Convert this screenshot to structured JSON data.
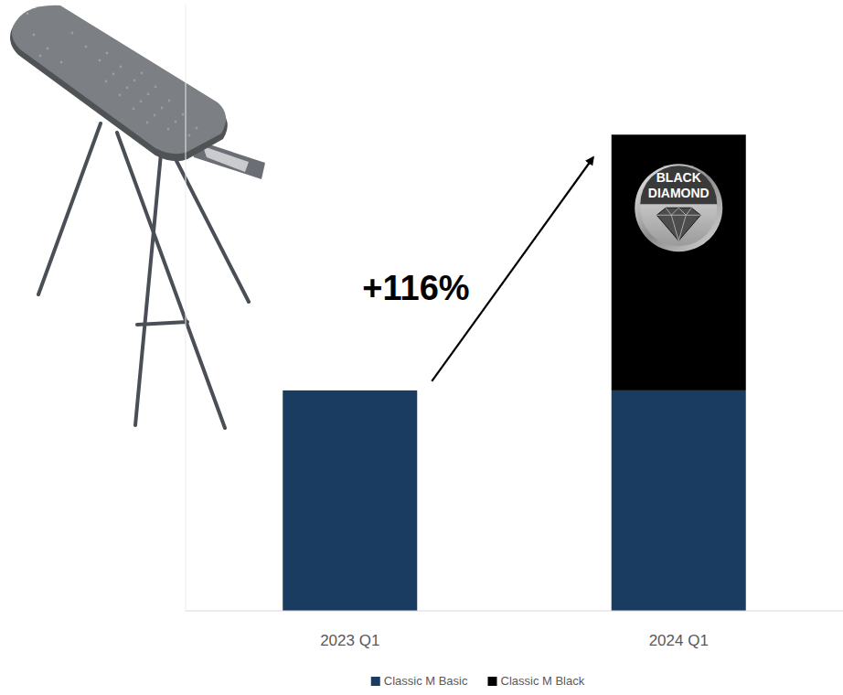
{
  "chart_data": {
    "type": "bar",
    "stacked": true,
    "categories": [
      "2023 Q1",
      "2024 Q1"
    ],
    "series": [
      {
        "name": "Classic M Basic",
        "color": "#1b3c61",
        "values": [
          100,
          100
        ]
      },
      {
        "name": "Classic M Black",
        "color": "#000000",
        "values": [
          0,
          116
        ]
      }
    ],
    "ylim": [
      0,
      275
    ],
    "tick_labels": "x",
    "grid": false,
    "legend": "bottom",
    "annotations": [
      "+116%",
      "BLACK DIAMOND"
    ]
  }
}
